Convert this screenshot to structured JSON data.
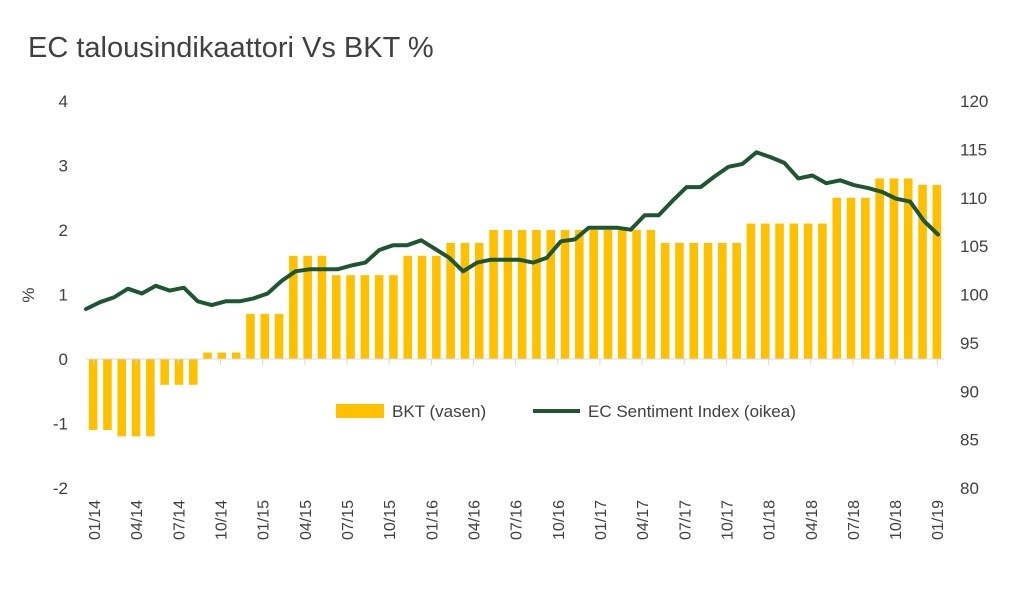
{
  "chart_data": {
    "type": "bar+line",
    "title": "EC talousindikaattori Vs BKT %",
    "ylabel_left": "%",
    "left_axis": {
      "min": -2,
      "max": 4,
      "ticks": [
        "4",
        "3",
        "2",
        "1",
        "0",
        "-1",
        "-2"
      ]
    },
    "right_axis": {
      "min": 80,
      "max": 120,
      "ticks": [
        "120",
        "115",
        "110",
        "105",
        "100",
        "95",
        "90",
        "85",
        "80"
      ]
    },
    "x_tick_labels": [
      "01/14",
      "04/14",
      "07/14",
      "10/14",
      "01/15",
      "04/15",
      "07/15",
      "10/15",
      "01/16",
      "04/16",
      "07/16",
      "10/16",
      "01/17",
      "04/17",
      "07/17",
      "10/17",
      "01/18",
      "04/18",
      "07/18",
      "10/18",
      "01/19"
    ],
    "legend_position": "center",
    "series": [
      {
        "name": "BKT (vasen)",
        "type": "bar",
        "axis": "left",
        "color": "#FFC000",
        "values": [
          -1.1,
          -1.1,
          -1.2,
          -1.2,
          -1.2,
          -0.4,
          -0.4,
          -0.4,
          0.1,
          0.1,
          0.1,
          0.7,
          0.7,
          0.7,
          1.6,
          1.6,
          1.6,
          1.3,
          1.3,
          1.3,
          1.3,
          1.3,
          1.6,
          1.6,
          1.6,
          1.8,
          1.8,
          1.8,
          2.0,
          2.0,
          2.0,
          2.0,
          2.0,
          2.0,
          2.0,
          2.0,
          2.0,
          2.0,
          2.0,
          2.0,
          1.8,
          1.8,
          1.8,
          1.8,
          1.8,
          1.8,
          2.1,
          2.1,
          2.1,
          2.1,
          2.1,
          2.1,
          2.5,
          2.5,
          2.5,
          2.8,
          2.8,
          2.8,
          2.7,
          2.7
        ]
      },
      {
        "name": "EC Sentiment Index (oikea)",
        "type": "line",
        "axis": "right",
        "color": "#1E5631",
        "values": [
          98.5,
          99.2,
          99.7,
          100.6,
          100.1,
          100.9,
          100.4,
          100.7,
          99.3,
          98.9,
          99.3,
          99.3,
          99.6,
          100.1,
          101.4,
          102.4,
          102.6,
          102.6,
          102.6,
          103.0,
          103.3,
          104.6,
          105.1,
          105.1,
          105.6,
          104.7,
          103.8,
          102.4,
          103.3,
          103.6,
          103.6,
          103.6,
          103.3,
          103.8,
          105.5,
          105.7,
          106.9,
          106.9,
          106.9,
          106.7,
          108.2,
          108.2,
          109.7,
          111.1,
          111.1,
          112.2,
          113.2,
          113.5,
          114.7,
          114.2,
          113.6,
          112.0,
          112.3,
          111.5,
          111.8,
          111.3,
          111.0,
          110.6,
          109.9,
          109.6,
          107.6,
          106.2
        ]
      }
    ]
  }
}
